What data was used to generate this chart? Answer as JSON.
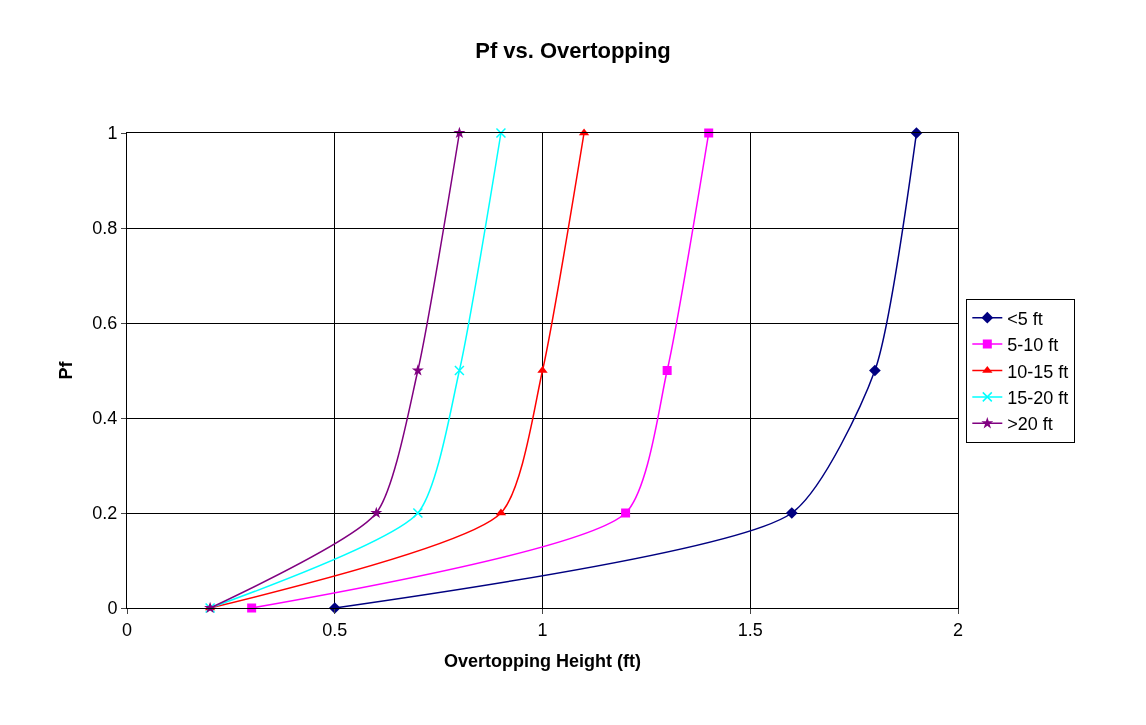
{
  "chart_data": {
    "type": "line",
    "title": "Pf vs. Overtopping",
    "xlabel": "Overtopping Height (ft)",
    "ylabel": "Pf",
    "xlim": [
      0,
      2
    ],
    "xticks": [
      0,
      0.5,
      1,
      1.5,
      2
    ],
    "ylim": [
      0,
      1
    ],
    "yticks": [
      0,
      0.2,
      0.4,
      0.6,
      0.8,
      1
    ],
    "grid": true,
    "legend": "right",
    "line_style": "solid",
    "series": [
      {
        "name": "<5 ft",
        "color": "#000080",
        "marker": "diamond",
        "x": [
          0.5,
          1.6,
          1.8,
          1.9
        ],
        "values": [
          0,
          0.2,
          0.5,
          1
        ]
      },
      {
        "name": "5-10 ft",
        "color": "#ff00ff",
        "marker": "square",
        "x": [
          0.3,
          1.2,
          1.3,
          1.4
        ],
        "values": [
          0,
          0.2,
          0.5,
          1
        ]
      },
      {
        "name": "10-15 ft",
        "color": "#ff0000",
        "marker": "triangle",
        "x": [
          0.2,
          0.9,
          1.0,
          1.1
        ],
        "values": [
          0,
          0.2,
          0.5,
          1
        ]
      },
      {
        "name": "15-20 ft",
        "color": "#00ffff",
        "marker": "cross",
        "x": [
          0.2,
          0.7,
          0.8,
          0.9
        ],
        "values": [
          0,
          0.2,
          0.5,
          1
        ]
      },
      {
        "name": ">20 ft",
        "color": "#800080",
        "marker": "star",
        "x": [
          0.2,
          0.6,
          0.7,
          0.8
        ],
        "values": [
          0,
          0.2,
          0.5,
          1
        ]
      }
    ]
  }
}
